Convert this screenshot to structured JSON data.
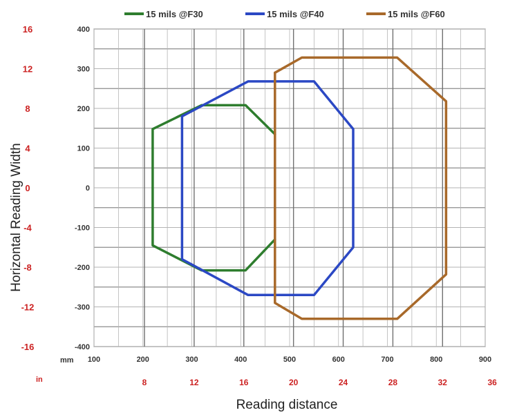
{
  "chart_data": {
    "type": "line",
    "title": "",
    "xlabel": "Reading distance",
    "ylabel": "Horizontal Reading Width",
    "x_unit_primary": "mm",
    "x_unit_secondary": "in",
    "xlim": [
      100,
      900
    ],
    "ylim": [
      -400,
      400
    ],
    "x_ticks_mm": [
      "100",
      "200",
      "300",
      "400",
      "500",
      "600",
      "700",
      "800",
      "900"
    ],
    "x_ticks_in": [
      {
        "value": 8,
        "label": "8"
      },
      {
        "value": 12,
        "label": "12"
      },
      {
        "value": 16,
        "label": "16"
      },
      {
        "value": 20,
        "label": "20"
      },
      {
        "value": 24,
        "label": "24"
      },
      {
        "value": 28,
        "label": "28"
      },
      {
        "value": 32,
        "label": "32"
      },
      {
        "value": 36,
        "label": "36"
      }
    ],
    "y_ticks_mm": [
      "400",
      "300",
      "200",
      "100",
      "0",
      "-100",
      "-200",
      "-300",
      "-400"
    ],
    "y_ticks_in": [
      "16",
      "12",
      "8",
      "4",
      "0",
      "-4",
      "-8",
      "-12",
      "-16"
    ],
    "grid": true,
    "legend_position": "top",
    "series": [
      {
        "name": "15 mils @F30",
        "color": "#2e7d2e",
        "points": [
          [
            470,
            135
          ],
          [
            410,
            208
          ],
          [
            320,
            208
          ],
          [
            220,
            148
          ],
          [
            220,
            -145
          ],
          [
            320,
            -208
          ],
          [
            410,
            -208
          ],
          [
            470,
            -130
          ]
        ]
      },
      {
        "name": "15 mils @F40",
        "color": "#2b48c4",
        "points": [
          [
            280,
            180
          ],
          [
            415,
            268
          ],
          [
            550,
            268
          ],
          [
            630,
            148
          ],
          [
            630,
            -150
          ],
          [
            550,
            -270
          ],
          [
            415,
            -270
          ],
          [
            280,
            -180
          ],
          [
            280,
            180
          ]
        ]
      },
      {
        "name": "15 mils @F60",
        "color": "#a8692a",
        "points": [
          [
            470,
            290
          ],
          [
            525,
            328
          ],
          [
            720,
            328
          ],
          [
            820,
            218
          ],
          [
            820,
            -218
          ],
          [
            720,
            -330
          ],
          [
            525,
            -330
          ],
          [
            470,
            -290
          ],
          [
            470,
            290
          ]
        ]
      }
    ]
  }
}
